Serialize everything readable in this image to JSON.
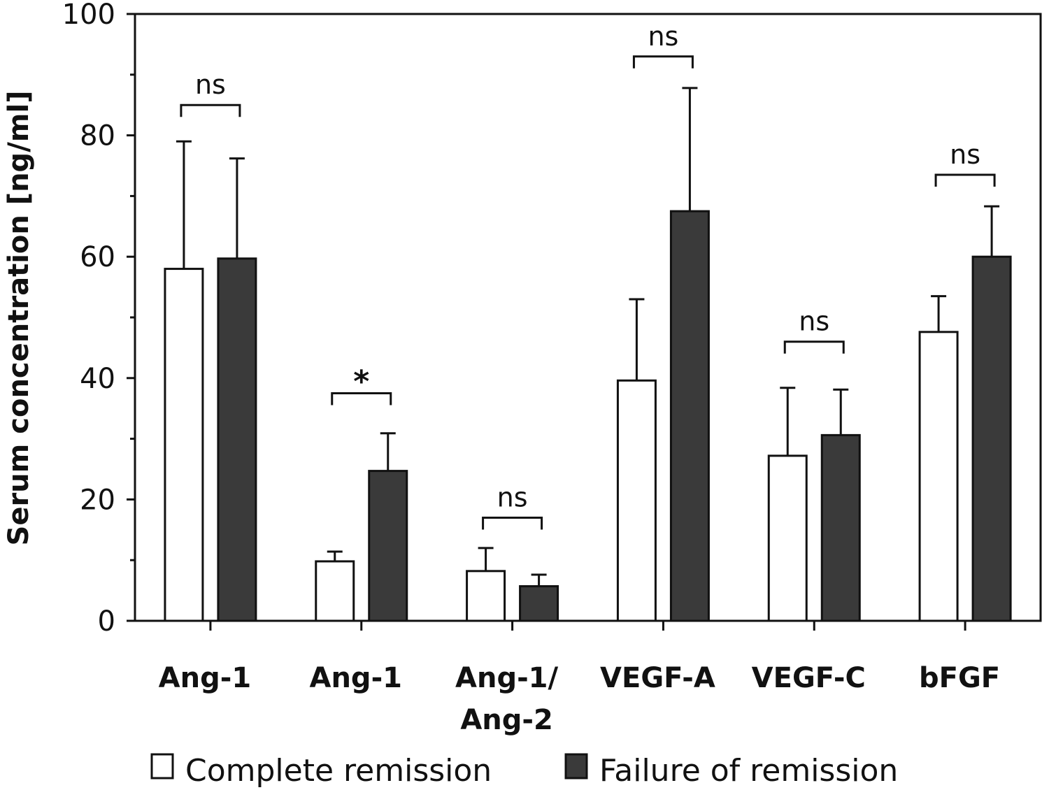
{
  "chart_data": {
    "type": "bar",
    "title": "",
    "xlabel": "",
    "ylabel": "Serum concentration [ng/ml]",
    "ylim": [
      0,
      100
    ],
    "yticks": [
      "0",
      "20",
      "40",
      "60",
      "80",
      "100"
    ],
    "categories": [
      [
        "Ang-1"
      ],
      [
        "Ang-1"
      ],
      [
        "Ang-1/",
        "Ang-2"
      ],
      [
        "VEGF-A"
      ],
      [
        "VEGF-C"
      ],
      [
        "bFGF"
      ]
    ],
    "series": [
      {
        "name": "Complete remission",
        "color": "#ffffff",
        "values": [
          58,
          9.8,
          8.2,
          39.6,
          27.2,
          47.6
        ],
        "errors": [
          21,
          1.6,
          3.8,
          13.4,
          11.2,
          5.9
        ]
      },
      {
        "name": "Failure of remission",
        "color": "#3a3a3a",
        "values": [
          59.7,
          24.7,
          5.7,
          67.5,
          30.6,
          60
        ],
        "errors": [
          16.5,
          6.2,
          1.9,
          20.3,
          7.5,
          8.3
        ]
      }
    ],
    "significance": [
      {
        "label": "ns",
        "level": 85
      },
      {
        "label": "*",
        "level": 37.5
      },
      {
        "label": "ns",
        "level": 17
      },
      {
        "label": "ns",
        "level": 93
      },
      {
        "label": "ns",
        "level": 46
      },
      {
        "label": "ns",
        "level": 73.5
      }
    ],
    "grid": false,
    "legend_position": "bottom"
  }
}
